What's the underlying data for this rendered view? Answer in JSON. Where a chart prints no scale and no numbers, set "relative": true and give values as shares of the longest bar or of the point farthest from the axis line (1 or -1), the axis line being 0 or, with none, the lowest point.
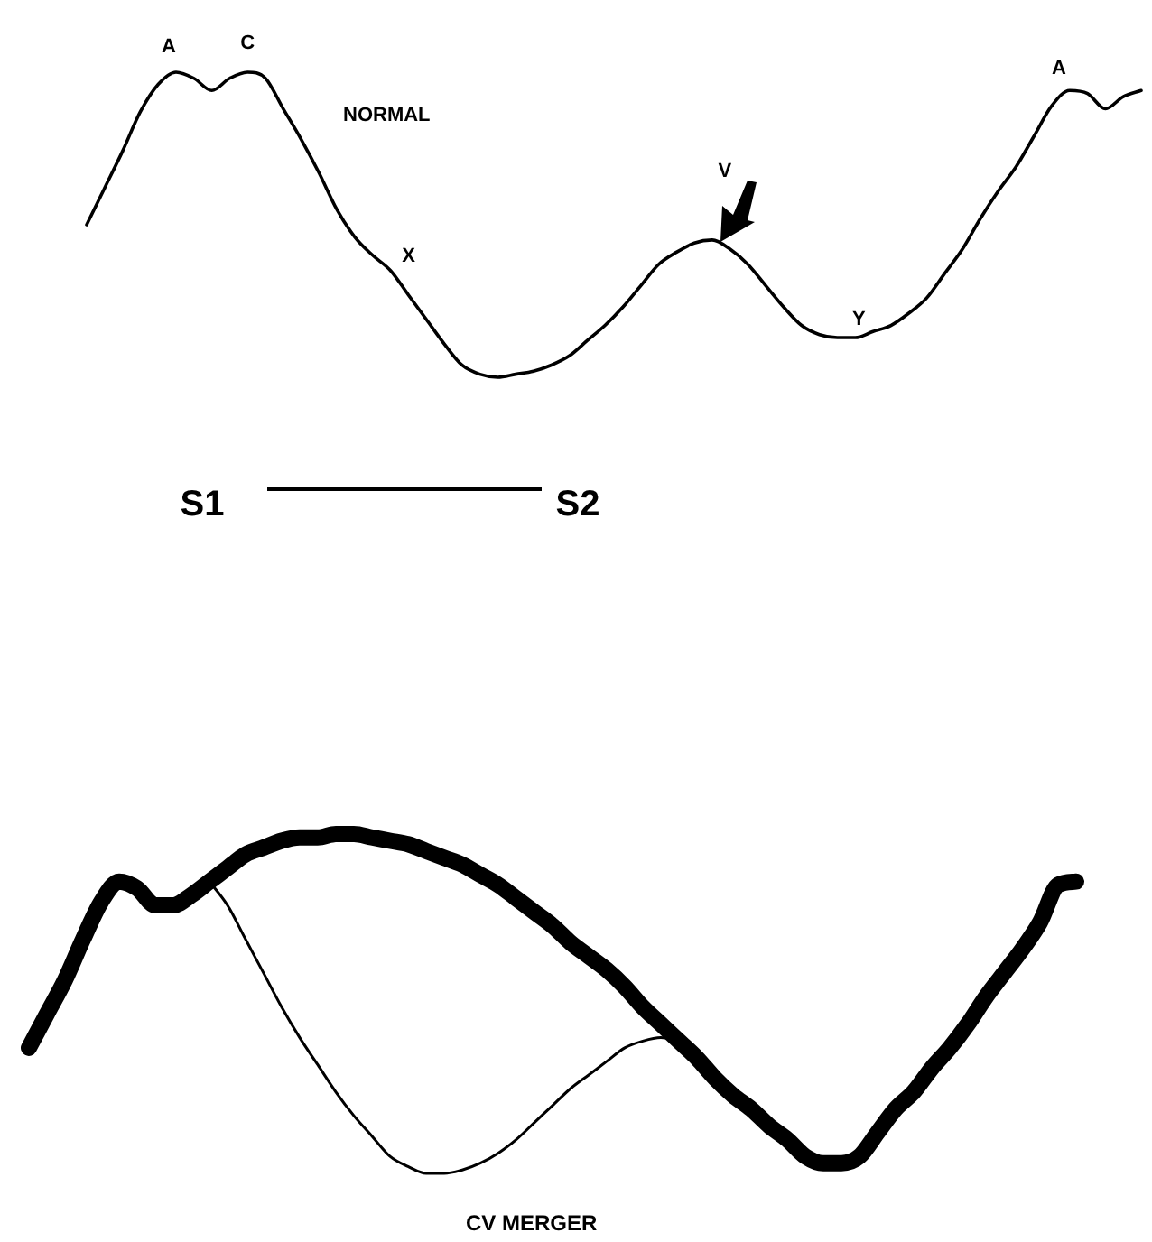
{
  "chart_data": [
    {
      "type": "line",
      "title": "NORMAL",
      "relative": true,
      "legend": false,
      "tick_labels": false,
      "marker": "none",
      "line_style": "solid",
      "categories": [
        null,
        null,
        null,
        null,
        null,
        null,
        null,
        null,
        null,
        null,
        null,
        null,
        null,
        null,
        null,
        null,
        null,
        null,
        null,
        null,
        null,
        null,
        null,
        null,
        null,
        null,
        null,
        null,
        null,
        null,
        null,
        null,
        null,
        null,
        null,
        null,
        null,
        null,
        null,
        null,
        null,
        null,
        null,
        null,
        null,
        null,
        null,
        null,
        null,
        null,
        null,
        null,
        null,
        null,
        null,
        null,
        null,
        null,
        null,
        null
      ],
      "series": [
        {
          "color": "#000000",
          "values": [
            0.5,
            0.62,
            0.74,
            0.87,
            0.96,
            1.0,
            0.98,
            0.94,
            0.98,
            1.0,
            0.98,
            0.88,
            0.78,
            0.67,
            0.55,
            0.46,
            0.4,
            0.35,
            0.27,
            0.19,
            0.11,
            0.04,
            0.01,
            0,
            0.01,
            0.02,
            0.04,
            0.07,
            0.12,
            0.17,
            0.23,
            0.3,
            0.37,
            0.41,
            0.44,
            0.45,
            0.42,
            0.37,
            0.3,
            0.23,
            0.17,
            0.14,
            0.13,
            0.13,
            0.15,
            0.17,
            0.21,
            0.26,
            0.34,
            0.42,
            0.52,
            0.61,
            0.69,
            0.79,
            0.89,
            0.94,
            0.93,
            0.88,
            0.92,
            0.94
          ]
        }
      ],
      "annotations": [
        "A",
        "C",
        "X",
        "V",
        "Y",
        "A",
        "S1",
        "S2"
      ]
    },
    {
      "type": "line",
      "title": "CV MERGER",
      "relative": true,
      "legend": false,
      "tick_labels": false,
      "marker": "none",
      "line_style": "solid",
      "categories": [
        null,
        null,
        null,
        null,
        null,
        null,
        null,
        null,
        null,
        null,
        null,
        null,
        null,
        null,
        null,
        null,
        null,
        null,
        null,
        null,
        null,
        null,
        null,
        null,
        null,
        null,
        null,
        null,
        null,
        null,
        null,
        null,
        null,
        null,
        null,
        null,
        null,
        null,
        null,
        null,
        null,
        null,
        null,
        null,
        null,
        null,
        null,
        null,
        null,
        null,
        null,
        null,
        null,
        null,
        null,
        null,
        null,
        null,
        null
      ],
      "series": [
        {
          "color": "#000000",
          "values": [
            0.37,
            0.47,
            0.57,
            0.69,
            0.8,
            0.86,
            0.84,
            0.79,
            0.79,
            0.82,
            0.86,
            0.9,
            0.94,
            0.96,
            0.98,
            0.99,
            0.99,
            1,
            1,
            0.99,
            0.98,
            0.97,
            0.95,
            0.93,
            0.91,
            0.88,
            0.85,
            0.81,
            0.77,
            0.73,
            0.68,
            0.64,
            0.6,
            0.55,
            0.49,
            0.44,
            0.39,
            0.34,
            0.28,
            0.23,
            0.19,
            0.14,
            0.1,
            0.05,
            0.03,
            0.03,
            0.05,
            0.12,
            0.19,
            0.24,
            0.31,
            0.37,
            0.44,
            0.52,
            0.59,
            0.66,
            0.74,
            0.85,
            0.86
          ]
        },
        {
          "color": "#000000",
          "values": [
            null,
            null,
            null,
            null,
            null,
            null,
            null,
            null,
            null,
            null,
            0.86,
            0.79,
            0.69,
            0.59,
            0.49,
            0.4,
            0.32,
            0.24,
            0.17,
            0.11,
            0.05,
            0.02,
            0,
            0,
            0.01,
            0.03,
            0.06,
            0.1,
            0.15,
            0.2,
            0.25,
            0.29,
            0.33,
            0.37,
            0.39,
            0.4,
            0.39,
            null,
            null,
            null,
            null,
            null,
            null,
            null,
            null,
            null,
            null,
            null,
            null,
            null,
            null,
            null,
            null,
            null,
            null,
            null,
            null,
            null,
            null
          ]
        }
      ]
    }
  ]
}
